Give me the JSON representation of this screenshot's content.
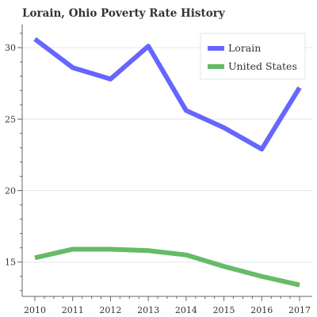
{
  "chart_data": {
    "type": "line",
    "title": "Lorain, Ohio Poverty Rate History",
    "xlabel": "",
    "ylabel": "",
    "x": [
      2010,
      2011,
      2012,
      2013,
      2014,
      2015,
      2016,
      2017
    ],
    "x_tick_labels": [
      "2010",
      "2011",
      "2012",
      "2013",
      "2014",
      "2015",
      "2016",
      "2017"
    ],
    "y_ticks": [
      15,
      20,
      25,
      30
    ],
    "ylim": [
      12.6,
      31.5
    ],
    "grid": "horizontal",
    "legend_position": "top-right",
    "series": [
      {
        "name": "Lorain",
        "color": "#6666ff",
        "values": [
          30.6,
          28.6,
          27.8,
          30.1,
          25.6,
          24.4,
          22.9,
          27.2
        ]
      },
      {
        "name": "United States",
        "color": "#66bb66",
        "values": [
          15.3,
          15.9,
          15.9,
          15.8,
          15.5,
          14.7,
          14.0,
          13.4
        ]
      }
    ]
  }
}
